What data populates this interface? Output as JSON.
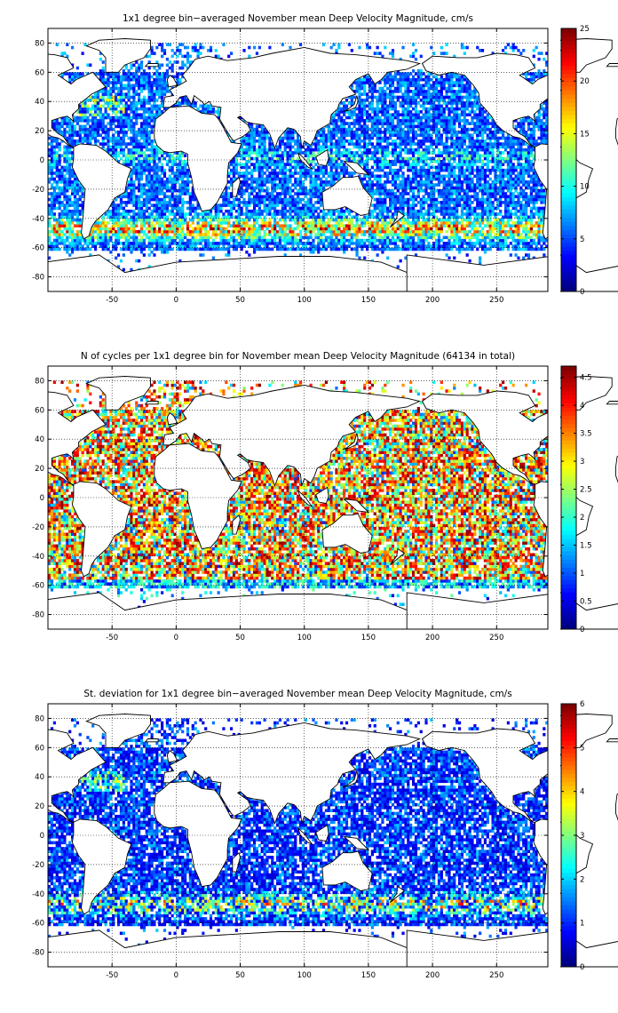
{
  "chart_data": [
    {
      "type": "heatmap",
      "title": "1x1 degree bin−averaged November mean Deep Velocity Magnitude, cm/s",
      "x_ticks": [
        -50,
        0,
        50,
        100,
        150,
        200,
        250
      ],
      "y_ticks": [
        80,
        60,
        40,
        20,
        0,
        -20,
        -40,
        -60,
        -80
      ],
      "xlim": [
        -100,
        290
      ],
      "ylim": [
        -90,
        90
      ],
      "colorbar": {
        "min": 0,
        "max": 25,
        "ticks": [
          0,
          5,
          10,
          15,
          20,
          25
        ]
      },
      "field": "velocity",
      "grid": true,
      "colormap": "jet"
    },
    {
      "type": "heatmap",
      "title": "N of cycles per 1x1 degree bin for November mean Deep Velocity Magnitude (64134 in total)",
      "x_ticks": [
        -50,
        0,
        50,
        100,
        150,
        200,
        250
      ],
      "y_ticks": [
        80,
        60,
        40,
        20,
        0,
        -20,
        -40,
        -60,
        -80
      ],
      "xlim": [
        -100,
        290
      ],
      "ylim": [
        -90,
        90
      ],
      "colorbar": {
        "min": 0,
        "max": 4.7,
        "ticks": [
          0,
          0.5,
          1,
          1.5,
          2,
          2.5,
          3,
          3.5,
          4,
          4.5
        ]
      },
      "field": "count",
      "grid": true,
      "colormap": "jet"
    },
    {
      "type": "heatmap",
      "title": "St. deviation for 1x1 degree bin−averaged November mean Deep Velocity Magnitude, cm/s",
      "x_ticks": [
        -50,
        0,
        50,
        100,
        150,
        200,
        250
      ],
      "y_ticks": [
        80,
        60,
        40,
        20,
        0,
        -20,
        -40,
        -60,
        -80
      ],
      "xlim": [
        -100,
        290
      ],
      "ylim": [
        -90,
        90
      ],
      "colorbar": {
        "min": 0,
        "max": 6,
        "ticks": [
          0,
          1,
          2,
          3,
          4,
          5,
          6
        ]
      },
      "field": "stdev",
      "grid": true,
      "colormap": "jet"
    }
  ]
}
